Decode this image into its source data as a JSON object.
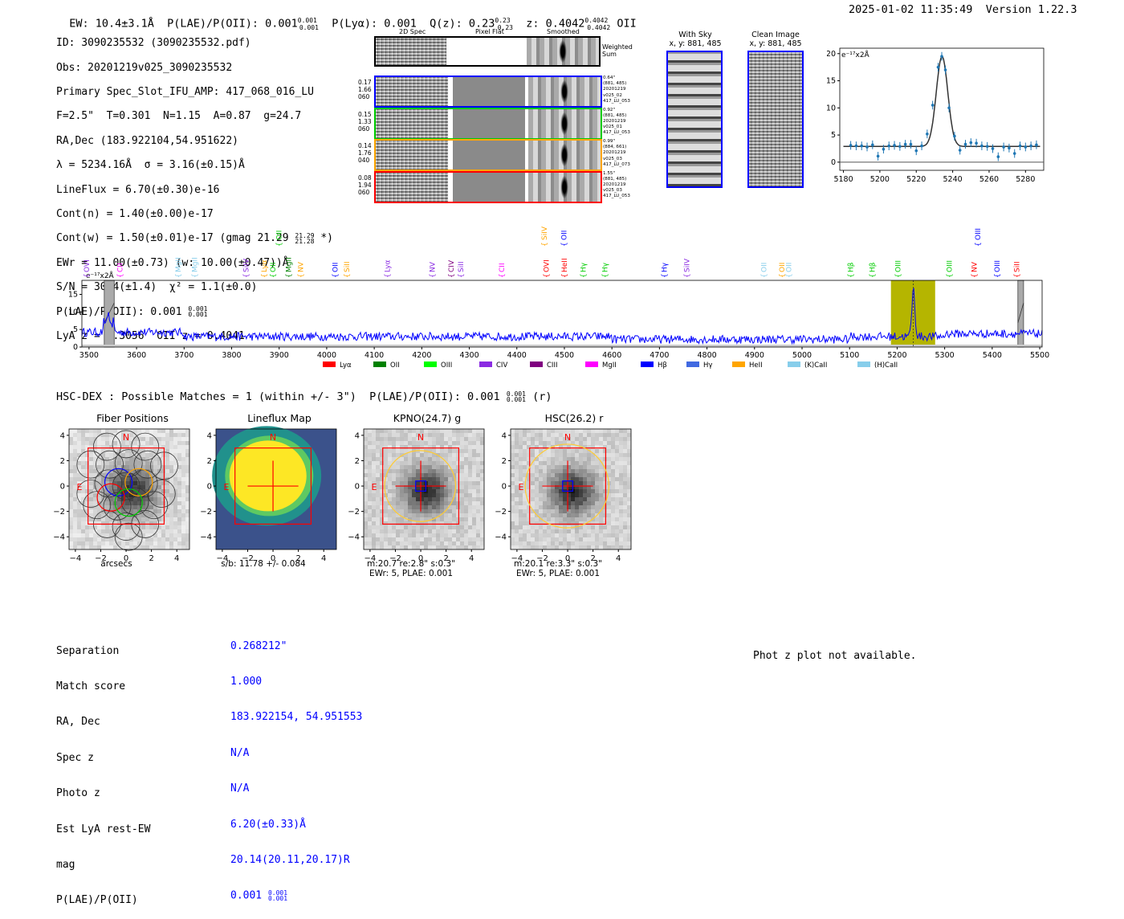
{
  "header": {
    "line": "EW: 10.4±3.1Å  P(LAE)/P(OII): 0.001",
    "plae_sup": "0.001",
    "plae_sub": "0.001",
    "plya": "P(Lyα): 0.001",
    "qz": "Q(z): 0.23",
    "qz_sup": "0.23",
    "qz_sub": "0.23",
    "z": "z: 0.4042",
    "z_sup": "0.4042",
    "z_sub": "0.4042",
    "z_line": "OII",
    "timestamp": "2025-01-02 11:35:49",
    "version": "Version 1.22.3"
  },
  "info": {
    "l1": "ID: 3090235532 (3090235532.pdf)",
    "l2": "Obs: 20201219v025_3090235532",
    "l3": "Primary Spec_Slot_IFU_AMP: 417_068_016_LU",
    "l4": "F=2.5\"  T=0.301  N=1.15  A=0.87  g=24.7",
    "l5": "RA,Dec (183.922104,54.951622)",
    "l6": "λ = 5234.16Å  σ = 3.16(±0.15)Å",
    "l7": "LineFlux = 6.70(±0.30)e-16",
    "l8": "Cont(n) = 1.40(±0.00)e-17",
    "l9": "Cont(w) = 1.50(±0.01)e-17 (gmag 21.29",
    "l9_sup": "21.29",
    "l9_sub": "21.28",
    "l9_end": "*)",
    "l10": "EWr = 11.00(±0.73) (w: 10.00(±0.47))Å",
    "l11": "S/N = 30.4(±1.4)  χ² = 1.1(±0.0)",
    "l12": "P(LAE)/P(OII): 0.001",
    "l12_sup": "0.001",
    "l12_sub": "0.001",
    "l13": "LyA z = 3.3056  OII z = 0.4041"
  },
  "cutouts": {
    "col1": "2D Spec",
    "col2": "Pixel Flat",
    "col3": "Smoothed",
    "weighted": "Weighted Sum",
    "rows": [
      {
        "left": [
          "0.17",
          "1.66",
          "060"
        ],
        "right": [
          "0.64\"",
          "(881, 485)",
          "20201219",
          "v025_02",
          "417_LU_053"
        ],
        "color": "#0000ff"
      },
      {
        "left": [
          "0.15",
          "1.33",
          "060"
        ],
        "right": [
          "0.92\"",
          "(881, 485)",
          "20201219",
          "v025_01",
          "417_LU_053"
        ],
        "color": "#00cc00"
      },
      {
        "left": [
          "0.14",
          "1.76",
          "040"
        ],
        "right": [
          "0.99\"",
          "(884, 661)",
          "20201219",
          "v025_03",
          "417_LU_073"
        ],
        "color": "#ffa500"
      },
      {
        "left": [
          "0.08",
          "1.94",
          "060"
        ],
        "right": [
          "1.55\"",
          "(881, 485)",
          "20201219",
          "v025_03",
          "417_LU_053"
        ],
        "color": "#ff0000"
      }
    ],
    "with_sky": "With Sky",
    "with_sky_xy": "x, y: 881, 485",
    "clean": "Clean Image",
    "clean_xy": "x, y: 881, 485"
  },
  "zoom_plot": {
    "unit": "e⁻¹⁷x2Å",
    "xticks": [
      "5180",
      "5200",
      "5220",
      "5240",
      "5260",
      "5280"
    ],
    "yticks": [
      "0",
      "5",
      "10",
      "15",
      "20"
    ]
  },
  "full_spec": {
    "unit": "e⁻¹⁷x2Å",
    "xticks": [
      "3500",
      "3600",
      "3700",
      "3800",
      "3900",
      "4000",
      "4100",
      "4200",
      "4300",
      "4400",
      "4500",
      "4600",
      "4700",
      "4800",
      "4900",
      "5000",
      "5100",
      "5200",
      "5300",
      "5400",
      "5500"
    ],
    "yticks": [
      "0",
      "5",
      "10",
      "15"
    ],
    "legend": [
      {
        "label": "Lyα",
        "color": "#ff0000"
      },
      {
        "label": "OII",
        "color": "#008000"
      },
      {
        "label": "OIII",
        "color": "#00ff00"
      },
      {
        "label": "CIV",
        "color": "#8a2be2"
      },
      {
        "label": "CIII",
        "color": "#800080"
      },
      {
        "label": "MgII",
        "color": "#ff00ff"
      },
      {
        "label": "Hβ",
        "color": "#0000ff"
      },
      {
        "label": "Hγ",
        "color": "#4169e1"
      },
      {
        "label": "HeII",
        "color": "#ffa500"
      },
      {
        "label": "(K)CaII",
        "color": "#87ceeb"
      },
      {
        "label": "(H)CaII",
        "color": "#87ceeb"
      }
    ]
  },
  "chart_data": [
    {
      "type": "scatter",
      "title": "",
      "ylabel": "e-17x2Å",
      "xlim": [
        5178,
        5290
      ],
      "ylim": [
        -1.5,
        21
      ],
      "x": [
        5184,
        5187,
        5190,
        5193,
        5196,
        5199,
        5202,
        5205,
        5208,
        5211,
        5214,
        5217,
        5220,
        5223,
        5226,
        5229,
        5232,
        5234,
        5236,
        5238,
        5241,
        5244,
        5247,
        5250,
        5253,
        5256,
        5259,
        5262,
        5265,
        5268,
        5271,
        5274,
        5277,
        5280,
        5283,
        5286
      ],
      "y": [
        3.1,
        3.0,
        3.0,
        2.8,
        3.2,
        1.1,
        2.4,
        3.0,
        3.1,
        2.9,
        3.3,
        3.3,
        2.1,
        3.0,
        5.2,
        10.5,
        17.5,
        19.5,
        17.0,
        10.0,
        4.8,
        2.2,
        3.3,
        3.6,
        3.5,
        3.0,
        2.9,
        2.5,
        1.0,
        2.8,
        2.6,
        1.6,
        3.0,
        2.8,
        3.0,
        3.2
      ],
      "fit_peak": 19.5,
      "fit_center": 5234.16,
      "fit_sigma": 3.16,
      "fit_continuum": 2.9
    },
    {
      "type": "line",
      "title": "",
      "ylabel": "e-17x2Å",
      "xlim": [
        3485,
        5505
      ],
      "ylim": [
        0,
        19
      ],
      "yticks": [
        0,
        5,
        10,
        15
      ],
      "highlight_band": [
        5187,
        5280
      ],
      "emission_center": 5234.16,
      "masked_bands": [
        [
          3532,
          3553
        ],
        [
          5454,
          5466
        ]
      ],
      "continuum_level": 3.0,
      "lines": [
        {
          "label": "OVI",
          "x": 3495,
          "color": "#8a2be2"
        },
        {
          "label": "CII",
          "x": 3565,
          "color": "#ff00ff"
        },
        {
          "label": "MgII",
          "x": 3688,
          "color": "#87ceeb"
        },
        {
          "label": "MgII",
          "x": 3722,
          "color": "#87ceeb"
        },
        {
          "label": "SiIV",
          "x": 3830,
          "color": "#8a2be2"
        },
        {
          "label": "Lyα",
          "x": 3868,
          "color": "#ffa500"
        },
        {
          "label": "OII",
          "x": 3887,
          "color": "#00cc00"
        },
        {
          "label": "MgII",
          "x": 3920,
          "color": "#008000"
        },
        {
          "label": "NV",
          "x": 3945,
          "color": "#ffa500"
        },
        {
          "label": "OII",
          "x": 4018,
          "color": "#0000ff"
        },
        {
          "label": "SiII",
          "x": 4042,
          "color": "#ffa500"
        },
        {
          "label": "Lyα",
          "x": 4128,
          "color": "#8a2be2"
        },
        {
          "label": "NV",
          "x": 4222,
          "color": "#8a2be2"
        },
        {
          "label": "CIV",
          "x": 4262,
          "color": "#800080"
        },
        {
          "label": "SiII",
          "x": 4282,
          "color": "#8a2be2"
        },
        {
          "label": "CII",
          "x": 4368,
          "color": "#ff00ff"
        },
        {
          "label": "OVI",
          "x": 4462,
          "color": "#ff0000"
        },
        {
          "label": "HeII",
          "x": 4500,
          "color": "#ff0000"
        },
        {
          "label": "Hγ",
          "x": 4540,
          "color": "#00cc00"
        },
        {
          "label": "Hγ",
          "x": 4585,
          "color": "#00cc00"
        },
        {
          "label": "Hγ",
          "x": 4710,
          "color": "#0000ff"
        },
        {
          "label": "SiIV",
          "x": 4758,
          "color": "#8a2be2"
        },
        {
          "label": "OII",
          "x": 4920,
          "color": "#87ceeb"
        },
        {
          "label": "OII",
          "x": 4958,
          "color": "#ffa500"
        },
        {
          "label": "OII",
          "x": 4972,
          "color": "#87ceeb"
        },
        {
          "label": "Hβ",
          "x": 5102,
          "color": "#00cc00"
        },
        {
          "label": "Hβ",
          "x": 5148,
          "color": "#00cc00"
        },
        {
          "label": "OIII",
          "x": 5202,
          "color": "#00cc00"
        },
        {
          "label": "OIII",
          "x": 5310,
          "color": "#00cc00"
        },
        {
          "label": "NV",
          "x": 5362,
          "color": "#ff0000"
        },
        {
          "label": "OIII",
          "x": 5410,
          "color": "#0000ff"
        },
        {
          "label": "SiII",
          "x": 5452,
          "color": "#ff0000"
        }
      ],
      "upper_lines": [
        {
          "label": "OII",
          "x": 3900,
          "color": "#00cc00"
        },
        {
          "label": "SiIV",
          "x": 4458,
          "color": "#ffa500"
        },
        {
          "label": "OII",
          "x": 4499,
          "color": "#0000ff"
        },
        {
          "label": "OIII",
          "x": 5370,
          "color": "#0000ff"
        }
      ]
    }
  ],
  "hsc": {
    "title": "HSC-DEX : Possible Matches = 1 (within +/- 3\")  P(LAE)/P(OII): 0.001",
    "sup": "0.001",
    "sub": "0.001",
    "band": "(r)",
    "panels": [
      {
        "title": "Fiber Positions",
        "footer": "arcsecs",
        "footer2": ""
      },
      {
        "title": "Lineflux Map",
        "footer": "s/b: 11.78 +/- 0.084",
        "footer2": ""
      },
      {
        "title": "KPNO(24.7) g",
        "footer": "m:20.7  re:2.8\"  s:0.3\"",
        "footer2": "EWr: 5, PLAE: 0.001"
      },
      {
        "title": "HSC(26.2) r",
        "footer": "m:20.1  re:3.3\"  s:0.3\"",
        "footer2": "EWr: 5, PLAE: 0.001"
      }
    ],
    "ticks": [
      "−4",
      "−2",
      "0",
      "2",
      "4"
    ],
    "yticks": [
      "4",
      "2",
      "0",
      "−2",
      "−4"
    ],
    "north": "N",
    "east": "E"
  },
  "match": {
    "labels": [
      "Separation",
      "Match score",
      "RA, Dec",
      "Spec z",
      "Photo z",
      "Est LyA rest-EW",
      "mag",
      "P(LAE)/P(OII)"
    ],
    "values": [
      "0.268212\"",
      "1.000",
      "183.922154, 54.951553",
      "N/A",
      "N/A",
      "6.20(±0.33)Å",
      "20.14(20.11,20.17)R",
      "0.001"
    ],
    "plae_sup": "0.001",
    "plae_sub": "0.001"
  },
  "photz": "Phot z plot not available."
}
